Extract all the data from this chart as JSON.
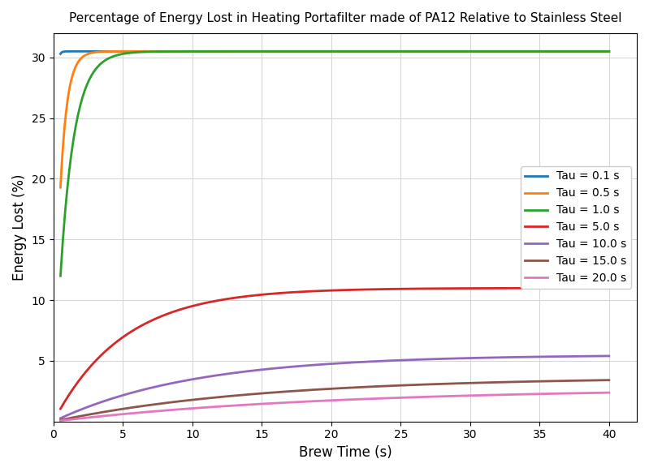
{
  "title": "Percentage of Energy Lost in Heating Portafilter made of PA12 Relative to Stainless Steel",
  "xlabel": "Brew Time (s)",
  "ylabel": "Energy Lost (%)",
  "taus": [
    0.1,
    0.5,
    1.0,
    5.0,
    10.0,
    15.0,
    20.0
  ],
  "tau_labels": [
    "Tau = 0.1 s",
    "Tau = 0.5 s",
    "Tau = 1.0 s",
    "Tau = 5.0 s",
    "Tau = 10.0 s",
    "Tau = 15.0 s",
    "Tau = 20.0 s"
  ],
  "colors": [
    "#1f77b4",
    "#ff7f0e",
    "#2ca02c",
    "#d62728",
    "#9467bd",
    "#8c564b",
    "#e377c2"
  ],
  "t_start": 0.5,
  "t_end": 40.0,
  "n_points": 500,
  "max_pct": 30.5,
  "scale_factor": 55.0,
  "xlim": [
    0,
    42
  ],
  "ylim": [
    0,
    32
  ],
  "xticks": [
    0,
    5,
    10,
    15,
    20,
    25,
    30,
    35,
    40
  ],
  "yticks": [
    5,
    10,
    15,
    20,
    25,
    30
  ],
  "figsize": [
    7.99,
    5.82
  ],
  "dpi": 100,
  "background_color": "#ffffff",
  "legend_loc": "center right",
  "grid": true,
  "linewidth": 2.0
}
